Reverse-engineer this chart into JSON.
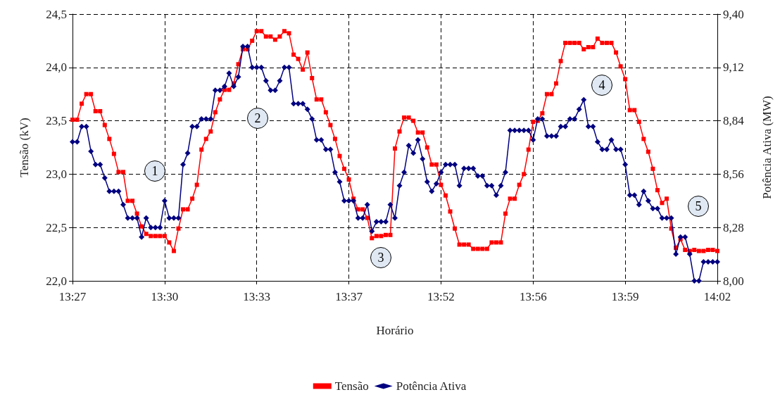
{
  "chart_data": {
    "type": "line",
    "xlabel": "Horário",
    "ylabel": "Tensão (kV)",
    "y2label": "Potência Ativa (MW)",
    "categories": [
      "13:27",
      null,
      null,
      null,
      null,
      null,
      null,
      null,
      null,
      null,
      null,
      null,
      null,
      null,
      null,
      null,
      null,
      null,
      null,
      null,
      "13:30",
      null,
      null,
      null,
      null,
      null,
      null,
      null,
      null,
      null,
      null,
      null,
      null,
      null,
      null,
      null,
      null,
      null,
      null,
      null,
      "13:33",
      null,
      null,
      null,
      null,
      null,
      null,
      null,
      null,
      null,
      null,
      null,
      null,
      null,
      null,
      null,
      null,
      null,
      null,
      null,
      "13:37",
      null,
      null,
      null,
      null,
      null,
      null,
      null,
      null,
      null,
      null,
      null,
      null,
      null,
      null,
      null,
      null,
      null,
      null,
      null,
      "13:52",
      null,
      null,
      null,
      null,
      null,
      null,
      null,
      null,
      null,
      null,
      null,
      null,
      null,
      null,
      null,
      null,
      null,
      null,
      null,
      "13:56",
      null,
      null,
      null,
      null,
      null,
      null,
      null,
      null,
      null,
      null,
      null,
      null,
      null,
      null,
      null,
      null,
      null,
      null,
      null,
      "13:59",
      null,
      null,
      null,
      null,
      null,
      null,
      null,
      null,
      null,
      null,
      null,
      null,
      null,
      null,
      null,
      null,
      null,
      null,
      null,
      "14:02"
    ],
    "ylim": [
      22,
      24.5
    ],
    "yticks": [
      {
        "value": 22,
        "label": "22,0"
      },
      {
        "value": 22.5,
        "label": "22,5"
      },
      {
        "value": 23,
        "label": "23,0"
      },
      {
        "value": 23.5,
        "label": "23,5"
      },
      {
        "value": 24,
        "label": "24,0"
      },
      {
        "value": 24.5,
        "label": "24,5"
      }
    ],
    "y2lim": [
      8,
      9.4
    ],
    "y2ticks": [
      {
        "value": 8,
        "label": "8,00"
      },
      {
        "value": 8.28,
        "label": "8,28"
      },
      {
        "value": 8.56,
        "label": "8,56"
      },
      {
        "value": 8.84,
        "label": "8,84"
      },
      {
        "value": 9.12,
        "label": "9,12"
      },
      {
        "value": 9.4,
        "label": "9,40"
      }
    ],
    "grid": true,
    "legend": "bottom",
    "line_style": "solid",
    "annotations": [
      "1",
      "2",
      "3",
      "4",
      "5"
    ],
    "series": [
      {
        "name": "Tensão",
        "color": "#ff0000",
        "marker": "square",
        "values": [
          23.51,
          23.51,
          23.66,
          23.75,
          23.75,
          23.59,
          23.59,
          23.46,
          23.33,
          23.19,
          23.02,
          23.02,
          22.75,
          22.75,
          22.63,
          22.51,
          22.44,
          22.42,
          22.42,
          22.42,
          22.42,
          22.36,
          22.28,
          22.49,
          22.67,
          22.67,
          22.77,
          22.9,
          23.23,
          23.33,
          23.4,
          23.58,
          23.7,
          23.79,
          23.79,
          23.85,
          24.03,
          24.17,
          24.17,
          24.25,
          24.34,
          24.34,
          24.29,
          24.29,
          24.26,
          24.29,
          24.34,
          24.32,
          24.12,
          24.08,
          23.98,
          24.14,
          23.9,
          23.7,
          23.7,
          23.58,
          23.46,
          23.33,
          23.17,
          23.05,
          22.95,
          22.77,
          22.67,
          22.67,
          22.59,
          22.4,
          22.42,
          22.42,
          22.43,
          22.43,
          23.24,
          23.4,
          23.53,
          23.53,
          23.5,
          23.39,
          23.39,
          23.25,
          23.09,
          23.09,
          22.9,
          22.8,
          22.65,
          22.49,
          22.34,
          22.34,
          22.34,
          22.3,
          22.3,
          22.3,
          22.3,
          22.36,
          22.36,
          22.36,
          22.63,
          22.77,
          22.77,
          22.9,
          23.0,
          23.23,
          23.49,
          23.5,
          23.57,
          23.75,
          23.75,
          23.85,
          24.06,
          24.23,
          24.23,
          24.23,
          24.23,
          24.17,
          24.19,
          24.19,
          24.27,
          24.23,
          24.23,
          24.23,
          24.14,
          24.01,
          23.89,
          23.6,
          23.6,
          23.49,
          23.33,
          23.21,
          23.05,
          22.85,
          22.73,
          22.77,
          22.49,
          22.31,
          22.39,
          22.29,
          22.28,
          22.29,
          22.28,
          22.28,
          22.29,
          22.29,
          22.28
        ]
      },
      {
        "name": "Potência Ativa",
        "color": "#000080",
        "marker": "diamond",
        "axis": "y2",
        "values": [
          8.73,
          8.73,
          8.81,
          8.81,
          8.68,
          8.61,
          8.61,
          8.54,
          8.47,
          8.47,
          8.47,
          8.4,
          8.33,
          8.33,
          8.33,
          8.23,
          8.33,
          8.28,
          8.28,
          8.28,
          8.42,
          8.33,
          8.33,
          8.33,
          8.61,
          8.67,
          8.81,
          8.81,
          8.85,
          8.85,
          8.85,
          9.0,
          9.0,
          9.02,
          9.09,
          9.02,
          9.07,
          9.23,
          9.23,
          9.12,
          9.12,
          9.12,
          9.05,
          9.0,
          9.0,
          9.05,
          9.12,
          9.12,
          8.93,
          8.93,
          8.93,
          8.9,
          8.85,
          8.74,
          8.74,
          8.69,
          8.69,
          8.57,
          8.52,
          8.42,
          8.42,
          8.42,
          8.33,
          8.33,
          8.4,
          8.26,
          8.31,
          8.31,
          8.31,
          8.4,
          8.33,
          8.5,
          8.57,
          8.71,
          8.67,
          8.74,
          8.64,
          8.52,
          8.47,
          8.51,
          8.57,
          8.61,
          8.61,
          8.61,
          8.5,
          8.59,
          8.59,
          8.59,
          8.55,
          8.55,
          8.5,
          8.5,
          8.45,
          8.5,
          8.57,
          8.79,
          8.79,
          8.79,
          8.79,
          8.79,
          8.74,
          8.85,
          8.85,
          8.76,
          8.76,
          8.76,
          8.81,
          8.81,
          8.85,
          8.85,
          8.9,
          8.95,
          8.81,
          8.81,
          8.73,
          8.69,
          8.69,
          8.74,
          8.69,
          8.69,
          8.61,
          8.45,
          8.45,
          8.4,
          8.47,
          8.42,
          8.38,
          8.38,
          8.33,
          8.33,
          8.33,
          8.14,
          8.23,
          8.23,
          8.14,
          8.0,
          8.0,
          8.1,
          8.1,
          8.1,
          8.1
        ]
      }
    ]
  }
}
